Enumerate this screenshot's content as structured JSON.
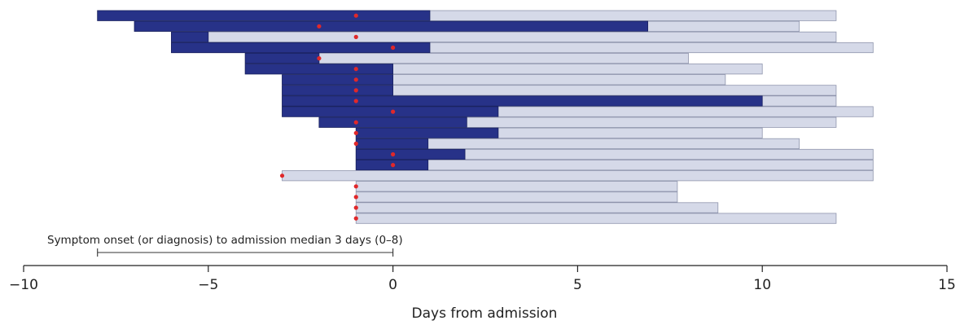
{
  "chart_data": {
    "type": "bar",
    "xlabel": "Days from admission",
    "ylabel": "",
    "xlim": [
      -10,
      15
    ],
    "xticks": [
      -10,
      -5,
      0,
      5,
      10,
      15
    ],
    "grid": false,
    "legend": "none",
    "colors": {
      "total_course": "#d5d9e8",
      "early_period": "#273288",
      "event_marker": "#e0282a"
    },
    "patients": [
      {
        "start": -8,
        "dark_end": 1,
        "end": 12,
        "marker": -1
      },
      {
        "start": -7,
        "dark_end": 6.9,
        "end": 11,
        "marker": -2
      },
      {
        "start": -6,
        "dark_end": -5,
        "end": 12,
        "marker": -1
      },
      {
        "start": -6,
        "dark_end": 1,
        "end": 13,
        "marker": 0
      },
      {
        "start": -4,
        "dark_end": -2,
        "end": 8,
        "marker": -2
      },
      {
        "start": -4,
        "dark_end": 0,
        "end": 10,
        "marker": -1
      },
      {
        "start": -3,
        "dark_end": 0,
        "end": 9,
        "marker": -1
      },
      {
        "start": -3,
        "dark_end": 0,
        "end": 12,
        "marker": -1
      },
      {
        "start": -3,
        "dark_end": 10,
        "end": 12,
        "marker": -1
      },
      {
        "start": -3,
        "dark_end": 2.85,
        "end": 13,
        "marker": 0
      },
      {
        "start": -2,
        "dark_end": 2,
        "end": 12,
        "marker": -1
      },
      {
        "start": -1,
        "dark_end": 2.85,
        "end": 10,
        "marker": -1
      },
      {
        "start": -1,
        "dark_end": 0.95,
        "end": 11,
        "marker": -1
      },
      {
        "start": -1,
        "dark_end": 1.95,
        "end": 13,
        "marker": 0
      },
      {
        "start": -1,
        "dark_end": 0.95,
        "end": 13,
        "marker": 0
      },
      {
        "start": -3,
        "dark_end": null,
        "end": 13,
        "marker": -3
      },
      {
        "start": -1,
        "dark_end": null,
        "end": 7.7,
        "marker": -1
      },
      {
        "start": -1,
        "dark_end": null,
        "end": 7.7,
        "marker": -1
      },
      {
        "start": -1,
        "dark_end": null,
        "end": 8.8,
        "marker": -1
      },
      {
        "start": -1,
        "dark_end": null,
        "end": 12,
        "marker": -1
      }
    ],
    "annotation": {
      "text": "Symptom onset (or diagnosis) to admission median 3 days (0–8)",
      "range": [
        -8,
        0
      ]
    }
  }
}
